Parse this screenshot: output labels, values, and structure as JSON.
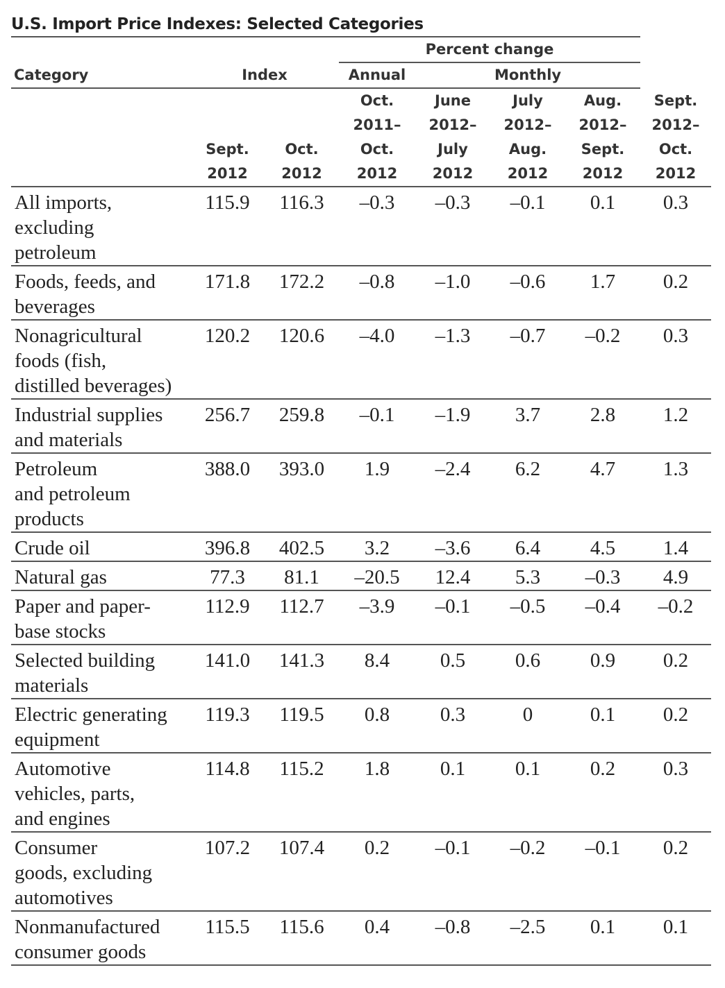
{
  "title": "U.S. Import Price Indexes: Selected Categories",
  "header": {
    "percent_change": "Percent change",
    "category": "Category",
    "index": "Index",
    "annual": "Annual",
    "monthly": "Monthly",
    "columns": [
      [
        "Sept.",
        "2012"
      ],
      [
        "Oct.",
        "2012"
      ],
      [
        "Oct.",
        "2011–",
        "Oct.",
        "2012"
      ],
      [
        "June",
        "2012–",
        "July",
        "2012"
      ],
      [
        "July",
        "2012–",
        "Aug.",
        "2012"
      ],
      [
        "Aug.",
        "2012–",
        "Sept.",
        "2012"
      ],
      [
        "Sept.",
        "2012–",
        "Oct.",
        "2012"
      ]
    ]
  },
  "rows": [
    {
      "category": [
        "All imports,",
        "excluding",
        "petroleum"
      ],
      "values": [
        "115.9",
        "116.3",
        "–0.3",
        "–0.3",
        "–0.1",
        "0.1",
        "0.3"
      ]
    },
    {
      "category": [
        "Foods, feeds, and",
        "beverages"
      ],
      "values": [
        "171.8",
        "172.2",
        "–0.8",
        "–1.0",
        "–0.6",
        "1.7",
        "0.2"
      ]
    },
    {
      "category": [
        "Nonagricultural",
        "foods (fish,",
        "distilled beverages)"
      ],
      "values": [
        "120.2",
        "120.6",
        "–4.0",
        "–1.3",
        "–0.7",
        "–0.2",
        "0.3"
      ]
    },
    {
      "category": [
        "Industrial supplies",
        "and materials"
      ],
      "values": [
        "256.7",
        "259.8",
        "–0.1",
        "–1.9",
        "3.7",
        "2.8",
        "1.2"
      ]
    },
    {
      "category": [
        "Petroleum",
        "and petroleum",
        "products"
      ],
      "values": [
        "388.0",
        "393.0",
        "1.9",
        "–2.4",
        "6.2",
        "4.7",
        "1.3"
      ]
    },
    {
      "category": [
        "Crude oil"
      ],
      "values": [
        "396.8",
        "402.5",
        "3.2",
        "–3.6",
        "6.4",
        "4.5",
        "1.4"
      ]
    },
    {
      "category": [
        "Natural gas"
      ],
      "values": [
        "77.3",
        "81.1",
        "–20.5",
        "12.4",
        "5.3",
        "–0.3",
        "4.9"
      ]
    },
    {
      "category": [
        "Paper and paper-",
        "base stocks"
      ],
      "values": [
        "112.9",
        "112.7",
        "–3.9",
        "–0.1",
        "–0.5",
        "–0.4",
        "–0.2"
      ]
    },
    {
      "category": [
        "Selected building",
        "materials"
      ],
      "values": [
        "141.0",
        "141.3",
        "8.4",
        "0.5",
        "0.6",
        "0.9",
        "0.2"
      ]
    },
    {
      "category": [
        "Electric generating",
        "equipment"
      ],
      "values": [
        "119.3",
        "119.5",
        "0.8",
        "0.3",
        "0",
        "0.1",
        "0.2"
      ]
    },
    {
      "category": [
        "Automotive",
        "vehicles, parts,",
        "and engines"
      ],
      "values": [
        "114.8",
        "115.2",
        "1.8",
        "0.1",
        "0.1",
        "0.2",
        "0.3"
      ]
    },
    {
      "category": [
        "Consumer",
        "goods, excluding",
        "automotives"
      ],
      "values": [
        "107.2",
        "107.4",
        "0.2",
        "–0.1",
        "–0.2",
        "–0.1",
        "0.2"
      ]
    },
    {
      "category": [
        "Nonmanufactured",
        "consumer goods"
      ],
      "values": [
        "115.5",
        "115.6",
        "0.4",
        "–0.8",
        "–2.5",
        "0.1",
        "0.1"
      ]
    }
  ]
}
